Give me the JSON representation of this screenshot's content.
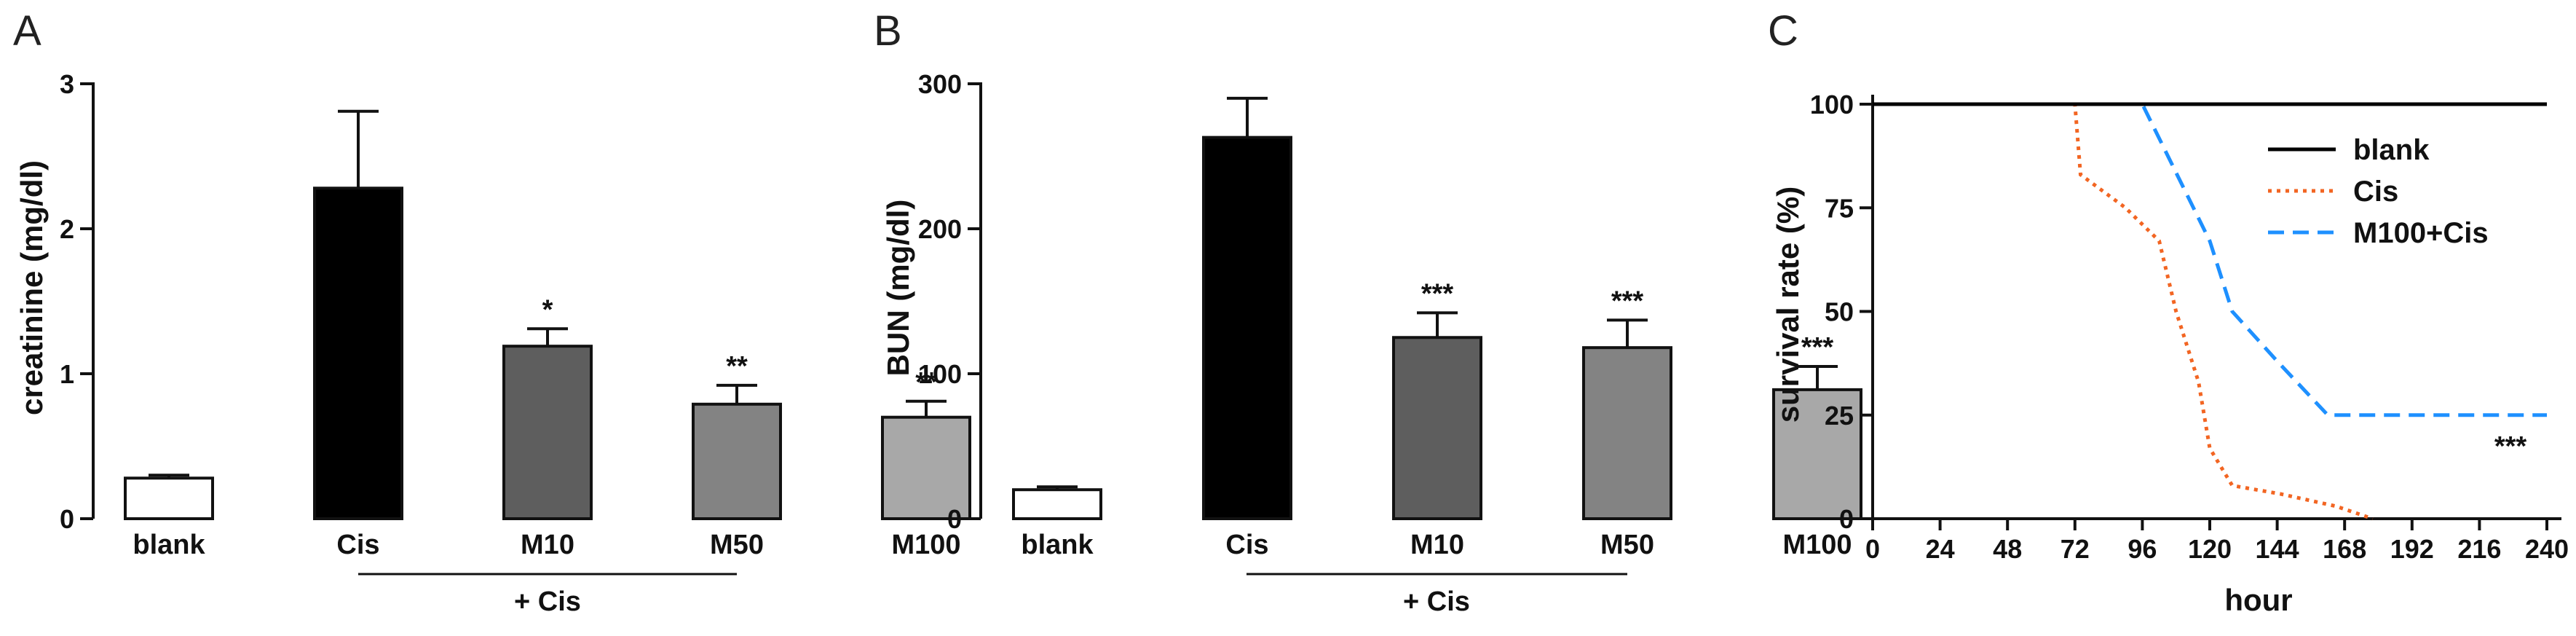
{
  "chart_data": [
    {
      "panel": "A",
      "type": "bar",
      "ylabel": "creatinine (mg/dl)",
      "ylim": [
        0,
        3
      ],
      "yticks": [
        "0",
        "1",
        "2",
        "3"
      ],
      "categories": [
        "blank",
        "Cis",
        "M10",
        "M50",
        "M100"
      ],
      "values": [
        0.28,
        2.28,
        1.19,
        0.79,
        0.7
      ],
      "errors": [
        0.02,
        0.53,
        0.12,
        0.13,
        0.11
      ],
      "significance": [
        "",
        "",
        "*",
        "**",
        "**"
      ],
      "colors": [
        "#ffffff",
        "#000000",
        "#5e5e5e",
        "#838383",
        "#a8a8a8"
      ],
      "group_label": "+ Cis"
    },
    {
      "panel": "B",
      "type": "bar",
      "ylabel": "BUN (mg/dl)",
      "ylim": [
        0,
        300
      ],
      "yticks": [
        "0",
        "100",
        "200",
        "300"
      ],
      "categories": [
        "blank",
        "Cis",
        "M10",
        "M50",
        "M100"
      ],
      "values": [
        20,
        263,
        125,
        118,
        89
      ],
      "errors": [
        2,
        27,
        17,
        19,
        16
      ],
      "significance": [
        "",
        "",
        "***",
        "***",
        "***"
      ],
      "colors": [
        "#ffffff",
        "#000000",
        "#5e5e5e",
        "#838383",
        "#a8a8a8"
      ],
      "group_label": "+ Cis"
    },
    {
      "panel": "C",
      "type": "line",
      "xlabel": "hour",
      "ylabel": "survival rate (%)",
      "xlim": [
        0,
        240
      ],
      "ylim": [
        0,
        100
      ],
      "xticks": [
        "0",
        "24",
        "48",
        "72",
        "96",
        "120",
        "144",
        "168",
        "192",
        "216",
        "240"
      ],
      "yticks": [
        "0",
        "25",
        "50",
        "75",
        "100"
      ],
      "series": [
        {
          "name": "blank",
          "color": "#000000",
          "style": "solid",
          "x": [
            0,
            240
          ],
          "y": [
            100,
            100
          ]
        },
        {
          "name": "Cis",
          "color": "#f26522",
          "style": "dotted",
          "x": [
            0,
            72,
            74,
            90,
            102,
            108,
            116,
            120,
            128,
            145,
            165,
            178
          ],
          "y": [
            100,
            100,
            83,
            75,
            67,
            50,
            33,
            17,
            8,
            6,
            3,
            0
          ]
        },
        {
          "name": "M100+Cis",
          "color": "#1e90ff",
          "style": "dashed",
          "x": [
            0,
            96,
            120,
            128,
            144,
            162,
            240
          ],
          "y": [
            100,
            100,
            67,
            50,
            38,
            25,
            25
          ]
        }
      ],
      "annotation": "***"
    }
  ]
}
